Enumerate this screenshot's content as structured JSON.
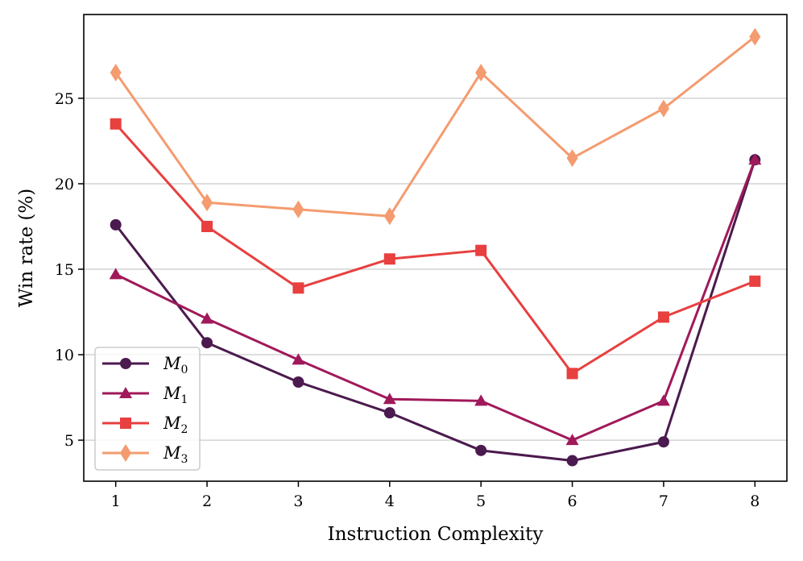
{
  "chart_data": {
    "type": "line",
    "title": "",
    "xlabel": "Instruction Complexity",
    "ylabel": "Win rate (%)",
    "x": [
      1,
      2,
      3,
      4,
      5,
      6,
      7,
      8
    ],
    "xticks": [
      "1",
      "2",
      "3",
      "4",
      "5",
      "6",
      "7",
      "8"
    ],
    "yticks": [
      "5",
      "10",
      "15",
      "20",
      "25"
    ],
    "ytick_values": [
      5,
      10,
      15,
      20,
      25
    ],
    "xlim": [
      0.65,
      8.35
    ],
    "ylim": [
      2.6,
      29.9
    ],
    "grid": "horizontal",
    "legend_position": "lower-left",
    "series": [
      {
        "name": "M",
        "subscript": "0",
        "marker": "circle",
        "color": "#4b1a4e",
        "values": [
          17.6,
          10.7,
          8.4,
          6.6,
          4.4,
          3.8,
          4.9,
          21.4
        ]
      },
      {
        "name": "M",
        "subscript": "1",
        "marker": "triangle",
        "color": "#a0195a",
        "values": [
          14.7,
          12.1,
          9.7,
          7.4,
          7.3,
          5.0,
          7.3,
          21.4
        ]
      },
      {
        "name": "M",
        "subscript": "2",
        "marker": "square",
        "color": "#e83f3f",
        "values": [
          23.5,
          17.5,
          13.9,
          15.6,
          16.1,
          8.9,
          12.2,
          14.3
        ]
      },
      {
        "name": "M",
        "subscript": "3",
        "marker": "diamond",
        "color": "#f49b6f",
        "values": [
          26.5,
          18.9,
          18.5,
          18.1,
          26.5,
          21.5,
          24.4,
          28.6
        ]
      }
    ]
  }
}
